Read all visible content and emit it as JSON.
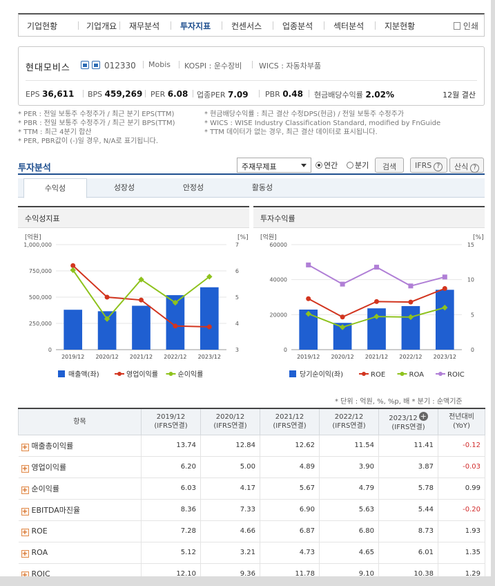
{
  "nav": {
    "items": [
      "기업현황",
      "기업개요",
      "재무분석",
      "투자지표",
      "컨센서스",
      "업종분석",
      "섹터분석",
      "지분현황"
    ],
    "active_index": 3,
    "print_label": "인쇄"
  },
  "company": {
    "name": "현대모비스",
    "code": "012330",
    "eng_name": "Mobis",
    "market": "KOSPI : 운수장비",
    "wics": "WICS : 자동차부품",
    "stats": [
      {
        "label": "EPS",
        "value": "36,611"
      },
      {
        "label": "BPS",
        "value": "459,269"
      },
      {
        "label": "PER",
        "value": "6.08"
      },
      {
        "label": "업종PER",
        "value": "7.09"
      },
      {
        "label": "PBR",
        "value": "0.48"
      },
      {
        "label": "현금배당수익률",
        "value": "2.02%"
      }
    ],
    "fiscal": "12월 결산"
  },
  "notes": {
    "left": [
      "* PER : 전일 보통주 수정주가 / 최근 분기 EPS(TTM)",
      "* PBR : 전일 보통주 수정주가 / 최근 분기 BPS(TTM)",
      "* TTM : 최근 4분기 합산",
      "* PER, PBR값이 (-)일 경우, N/A로 표기됩니다."
    ],
    "right": [
      "* 현금배당수익률 : 최근 결산 수정DPS(현금) / 전일 보통주 수정주가",
      "* WICS : WISE Industry Classification Standard, modified by FnGuide",
      "* TTM 데이터가 없는 경우, 최근 결산 데이터로 표시됩니다."
    ]
  },
  "section": {
    "title": "투자분석",
    "select_value": "주재무제표",
    "radio_annual": "연간",
    "radio_quarter": "분기",
    "search_button": "검색",
    "ifrs_button": "IFRS",
    "formula_button": "산식",
    "help_glyph": "?"
  },
  "tabs": [
    "수익성",
    "성장성",
    "안정성",
    "활동성"
  ],
  "charts": {
    "left_title": "수익성지표",
    "right_title": "투자수익률"
  },
  "chart_data": [
    {
      "type": "bar",
      "title": "수익성지표",
      "categories": [
        "2019/12",
        "2020/12",
        "2021/12",
        "2022/12",
        "2023/12"
      ],
      "y_left_unit": "[억원]",
      "y_right_unit": "[%]",
      "y_left_ticks": [
        "0",
        "250,000",
        "500,000",
        "750,000",
        "1,000,000"
      ],
      "y_right_ticks": [
        "3",
        "4",
        "5",
        "6",
        "7"
      ],
      "ylim_left": [
        0,
        1000000
      ],
      "ylim_right": [
        3,
        7
      ],
      "series": [
        {
          "name": "매출액(좌)",
          "type": "bar",
          "axis": "left",
          "color": "#1f5fd1",
          "values": [
            380000,
            366000,
            418000,
            519000,
            594000
          ]
        },
        {
          "name": "영업이익률",
          "type": "line",
          "axis": "right",
          "color": "#d2351f",
          "values": [
            6.2,
            5.0,
            4.89,
            3.9,
            3.87
          ]
        },
        {
          "name": "순이익률",
          "type": "line",
          "axis": "right",
          "color": "#8ec21d",
          "values": [
            6.03,
            4.17,
            5.67,
            4.79,
            5.78
          ]
        }
      ]
    },
    {
      "type": "bar",
      "title": "투자수익률",
      "categories": [
        "2019/12",
        "2020/12",
        "2021/12",
        "2022/12",
        "2023/12"
      ],
      "y_left_unit": "[억원]",
      "y_right_unit": "[%]",
      "y_left_ticks": [
        "0",
        "20000",
        "40000",
        "60000"
      ],
      "y_right_ticks": [
        "0",
        "5",
        "10",
        "15"
      ],
      "ylim_left": [
        0,
        60000
      ],
      "ylim_right": [
        0,
        15
      ],
      "series": [
        {
          "name": "당기순이익(좌)",
          "type": "bar",
          "axis": "left",
          "color": "#1f5fd1",
          "values": [
            22900,
            15300,
            23600,
            24900,
            34200
          ]
        },
        {
          "name": "ROE",
          "type": "line",
          "axis": "right",
          "color": "#d2351f",
          "values": [
            7.28,
            4.66,
            6.87,
            6.8,
            8.73
          ]
        },
        {
          "name": "ROA",
          "type": "line",
          "axis": "right",
          "color": "#8ec21d",
          "values": [
            5.12,
            3.21,
            4.73,
            4.65,
            6.01
          ]
        },
        {
          "name": "ROIC",
          "type": "line",
          "axis": "right",
          "color": "#b07fd6",
          "values": [
            12.1,
            9.36,
            11.78,
            9.1,
            10.38
          ]
        }
      ]
    }
  ],
  "table": {
    "unit_note": "* 단위 : 억원, %, %p, 배     * 분기 : 순액기준",
    "header_item": "항목",
    "columns": [
      {
        "period": "2019/12",
        "basis": "(IFRS연결)"
      },
      {
        "period": "2020/12",
        "basis": "(IFRS연결)"
      },
      {
        "period": "2021/12",
        "basis": "(IFRS연결)"
      },
      {
        "period": "2022/12",
        "basis": "(IFRS연결)"
      },
      {
        "period": "2023/12",
        "basis": "(IFRS연결)"
      }
    ],
    "yoy_header": "전년대비",
    "yoy_sub": "(YoY)",
    "add_glyph": "+",
    "expand_glyph": "+",
    "rows": [
      {
        "label": "매출총이익률",
        "values": [
          "13.74",
          "12.84",
          "12.62",
          "11.54",
          "11.41"
        ],
        "yoy": "-0.12"
      },
      {
        "label": "영업이익률",
        "values": [
          "6.20",
          "5.00",
          "4.89",
          "3.90",
          "3.87"
        ],
        "yoy": "-0.03"
      },
      {
        "label": "순이익률",
        "values": [
          "6.03",
          "4.17",
          "5.67",
          "4.79",
          "5.78"
        ],
        "yoy": "0.99"
      },
      {
        "label": "EBITDA마진율",
        "values": [
          "8.36",
          "7.33",
          "6.90",
          "5.63",
          "5.44"
        ],
        "yoy": "-0.20"
      },
      {
        "label": "ROE",
        "values": [
          "7.28",
          "4.66",
          "6.87",
          "6.80",
          "8.73"
        ],
        "yoy": "1.93"
      },
      {
        "label": "ROA",
        "values": [
          "5.12",
          "3.21",
          "4.73",
          "4.65",
          "6.01"
        ],
        "yoy": "1.35"
      },
      {
        "label": "ROIC",
        "values": [
          "12.10",
          "9.36",
          "11.78",
          "9.10",
          "10.38"
        ],
        "yoy": "1.29"
      }
    ]
  }
}
